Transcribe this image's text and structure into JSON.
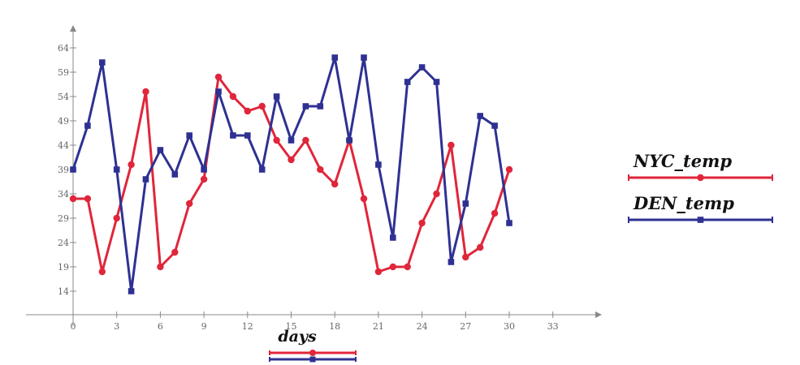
{
  "chart_data": {
    "type": "line",
    "xlabel": "days",
    "ylabel": "",
    "xlim": [
      0,
      33
    ],
    "ylim": [
      14,
      64
    ],
    "xticks": [
      0,
      3,
      6,
      9,
      12,
      15,
      18,
      21,
      24,
      27,
      30,
      33
    ],
    "yticks": [
      14,
      19,
      24,
      29,
      34,
      39,
      44,
      49,
      54,
      59,
      64
    ],
    "grid": false,
    "legend_position": "right",
    "series": [
      {
        "name": "NYC_temp",
        "color": "#e0263a",
        "marker": "circle",
        "x": [
          0,
          1,
          2,
          3,
          4,
          5,
          6,
          7,
          8,
          9,
          10,
          11,
          12,
          13,
          14,
          15,
          16,
          17,
          18,
          19,
          20,
          21,
          22,
          23,
          24,
          25,
          26,
          27,
          28,
          29,
          30
        ],
        "values": [
          33,
          33,
          18,
          29,
          40,
          55,
          19,
          22,
          32,
          37,
          58,
          54,
          51,
          52,
          45,
          41,
          45,
          39,
          36,
          45,
          33,
          18,
          19,
          19,
          28,
          34,
          44,
          21,
          23,
          30,
          39
        ]
      },
      {
        "name": "DEN_temp",
        "color": "#2e3192",
        "marker": "square",
        "x": [
          0,
          1,
          2,
          3,
          4,
          5,
          6,
          7,
          8,
          9,
          10,
          11,
          12,
          13,
          14,
          15,
          16,
          17,
          18,
          19,
          20,
          21,
          22,
          23,
          24,
          25,
          26,
          27,
          28,
          29,
          30
        ],
        "values": [
          39,
          48,
          61,
          39,
          14,
          37,
          43,
          38,
          46,
          39,
          55,
          46,
          46,
          39,
          54,
          45,
          52,
          52,
          62,
          45,
          62,
          40,
          25,
          57,
          60,
          57,
          20,
          32,
          50,
          48,
          28
        ]
      }
    ]
  }
}
